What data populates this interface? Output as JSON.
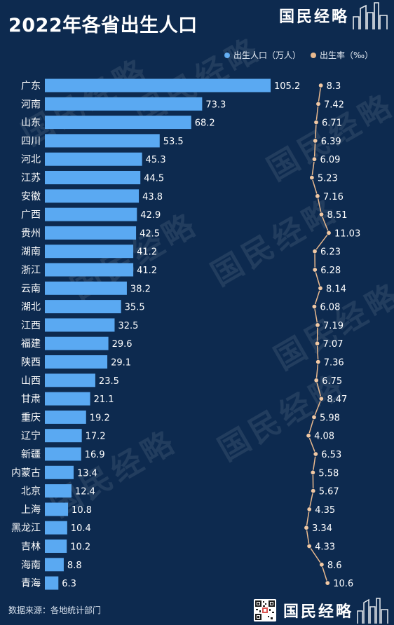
{
  "header": {
    "title": "2022年各省出生人口",
    "brand": "国民经略"
  },
  "legend": {
    "births_label": "出生人口（万人）",
    "rate_label": "出生率（‰）"
  },
  "colors": {
    "background": "#0d2a4f",
    "bar": "#5aa9f2",
    "rate_line": "#e9b98e",
    "rate_dot": "#f2c9a4"
  },
  "footer": {
    "source": "数据来源：各地统计部门",
    "brand": "国民经略"
  },
  "watermarks": [
    "国民经略",
    "国民经略",
    "国民经略",
    "国民经略",
    "国民经略",
    "国民经略",
    "国民经略",
    "国民经略"
  ],
  "chart_data": {
    "type": "bar",
    "title": "2022年各省出生人口",
    "categories": [
      "广东",
      "河南",
      "山东",
      "四川",
      "河北",
      "江苏",
      "安徽",
      "广西",
      "贵州",
      "湖南",
      "浙江",
      "云南",
      "湖北",
      "江西",
      "福建",
      "陕西",
      "山西",
      "甘肃",
      "重庆",
      "辽宁",
      "新疆",
      "内蒙古",
      "北京",
      "上海",
      "黑龙江",
      "吉林",
      "海南",
      "青海"
    ],
    "series": [
      {
        "name": "出生人口（万人）",
        "type": "bar",
        "values": [
          105.2,
          73.3,
          68.2,
          53.5,
          45.3,
          44.5,
          43.8,
          42.9,
          42.5,
          41.2,
          41.2,
          38.2,
          35.5,
          32.5,
          29.6,
          29.1,
          23.5,
          21.1,
          19.2,
          17.2,
          16.9,
          13.4,
          12.4,
          10.8,
          10.4,
          10.2,
          8.8,
          6.3
        ]
      },
      {
        "name": "出生率（‰）",
        "type": "line",
        "values": [
          8.3,
          7.42,
          6.71,
          6.39,
          6.09,
          5.23,
          7.16,
          8.51,
          11.03,
          6.23,
          6.28,
          8.14,
          6.08,
          7.19,
          7.07,
          7.36,
          6.75,
          8.47,
          5.98,
          4.08,
          6.53,
          5.58,
          5.67,
          4.35,
          3.34,
          4.33,
          8.6,
          10.6
        ]
      }
    ],
    "value_labels": {
      "births": [
        "105.2",
        "73.3",
        "68.2",
        "53.5",
        "45.3",
        "44.5",
        "43.8",
        "42.9",
        "42.5",
        "41.2",
        "41.2",
        "38.2",
        "35.5",
        "32.5",
        "29.6",
        "29.1",
        "23.5",
        "21.1",
        "19.2",
        "17.2",
        "16.9",
        "13.4",
        "12.4",
        "10.8",
        "10.4",
        "10.2",
        "8.8",
        "6.3"
      ],
      "rate": [
        "8.3",
        "7.42",
        "6.71",
        "6.39",
        "6.09",
        "5.23",
        "7.16",
        "8.51",
        "11.03",
        "6.23",
        "6.28",
        "8.14",
        "6.08",
        "7.19",
        "7.07",
        "7.36",
        "6.75",
        "8.47",
        "5.98",
        "4.08",
        "6.53",
        "5.58",
        "5.67",
        "4.35",
        "3.34",
        "4.33",
        "8.6",
        "10.6"
      ]
    },
    "legend_position": "top-right",
    "grid": false,
    "orientation": "horizontal"
  }
}
